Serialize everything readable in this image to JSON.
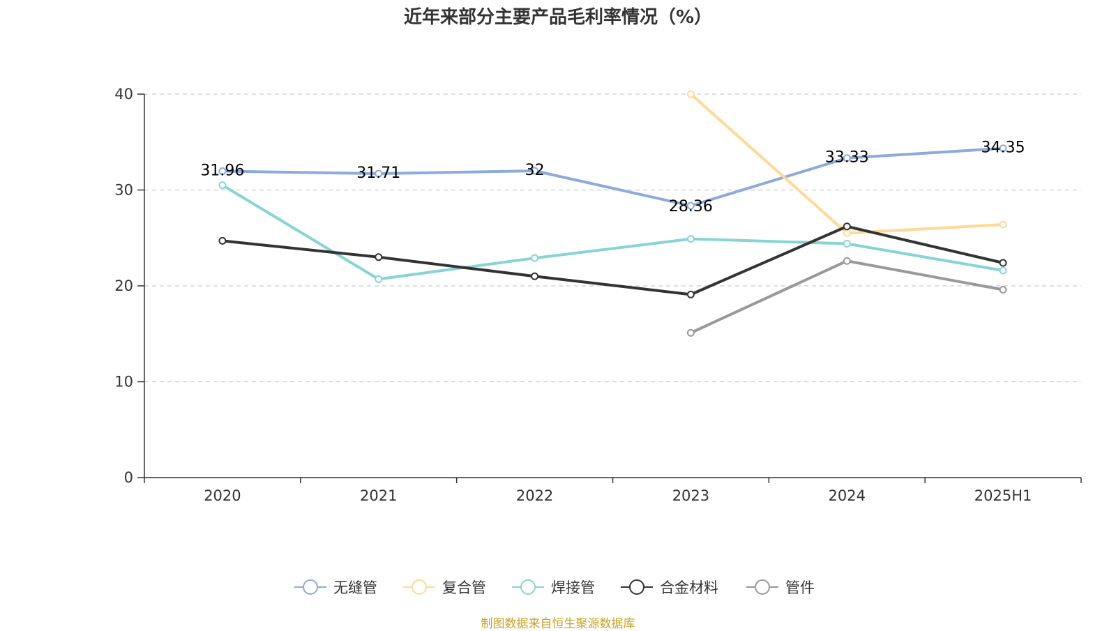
{
  "chart_data": {
    "type": "line",
    "title": "近年来部分主要产品毛利率情况（%）",
    "categories": [
      "2020",
      "2021",
      "2022",
      "2023",
      "2024",
      "2025H1"
    ],
    "ylim": [
      0,
      40
    ],
    "yticks": [
      0,
      10,
      20,
      30,
      40
    ],
    "grid": true,
    "legend_position": "bottom",
    "series": [
      {
        "name": "无缝管",
        "color": "#8eaadb",
        "values": [
          31.96,
          31.71,
          32,
          28.36,
          33.33,
          34.35
        ],
        "labels": [
          "31.96",
          "31.71",
          "32",
          "28.36",
          "33.33",
          "34.35"
        ]
      },
      {
        "name": "复合管",
        "color": "#ffd995",
        "values": [
          null,
          null,
          null,
          40.0,
          25.5,
          26.4
        ]
      },
      {
        "name": "焊接管",
        "color": "#86d4d6",
        "values": [
          30.5,
          20.7,
          22.9,
          24.9,
          24.4,
          21.6
        ]
      },
      {
        "name": "合金材料",
        "color": "#333333",
        "values": [
          24.7,
          23.0,
          21.0,
          19.1,
          26.2,
          22.4
        ]
      },
      {
        "name": "管件",
        "color": "#999999",
        "values": [
          null,
          null,
          null,
          15.1,
          22.6,
          19.6
        ]
      }
    ]
  },
  "source_note": "制图数据来自恒生聚源数据库"
}
